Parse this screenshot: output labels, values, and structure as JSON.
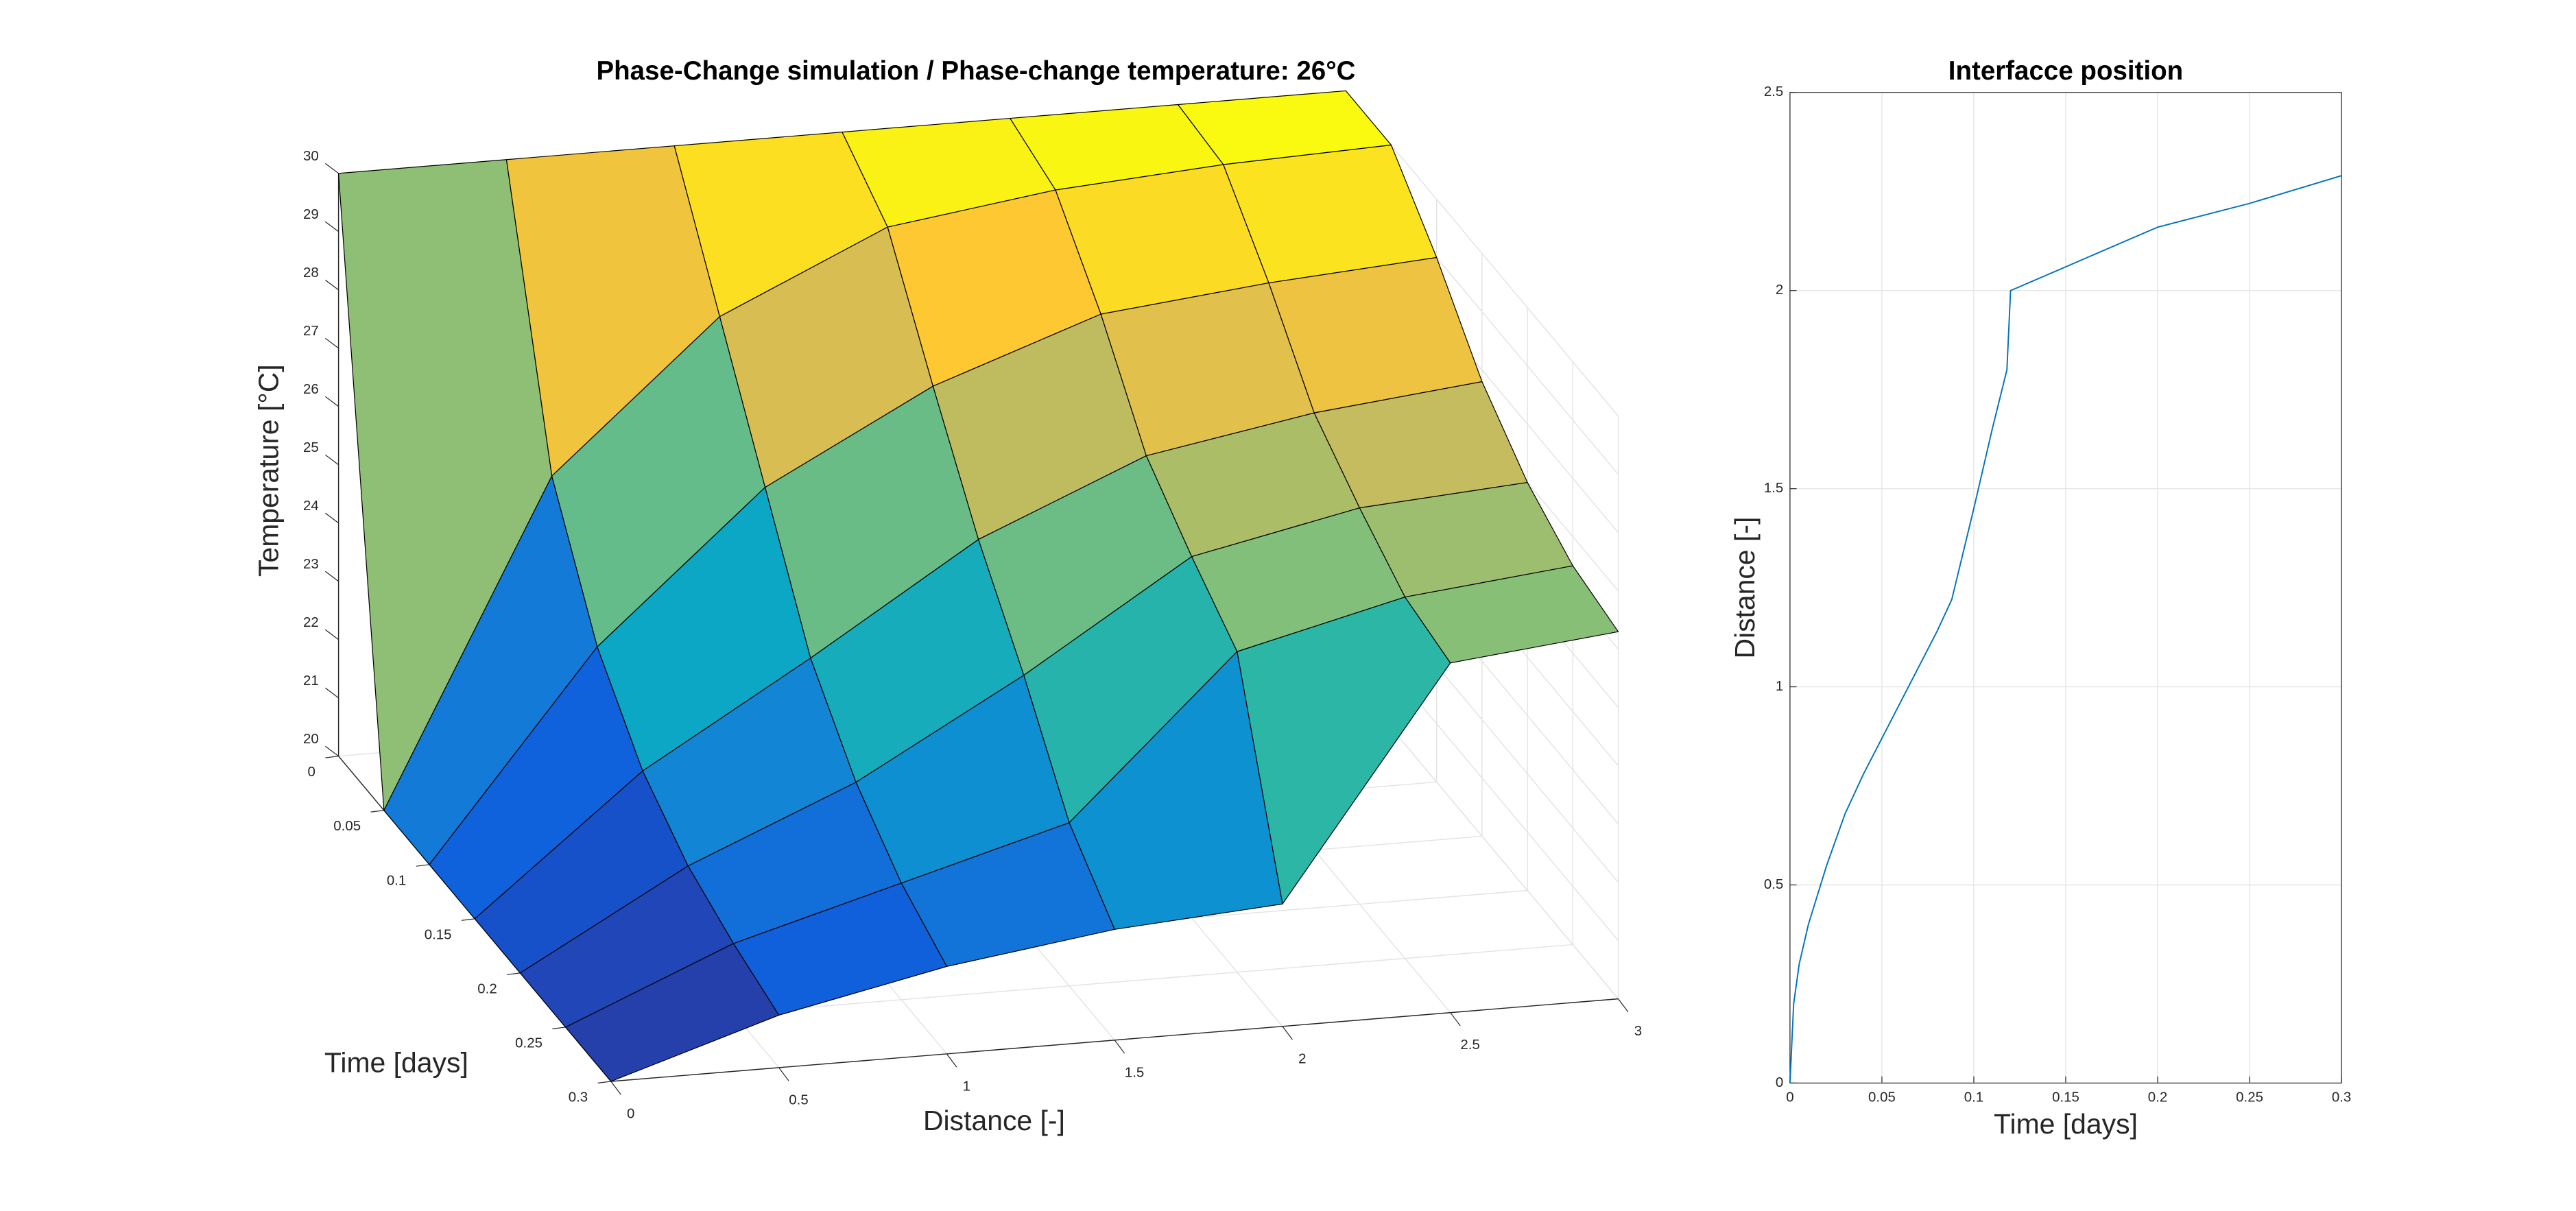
{
  "chart_data": [
    {
      "type": "surface",
      "title": "Phase-Change simulation / Phase-change temperature: 26°C",
      "xlabel": "Distance  [-]",
      "ylabel": "Time  [days]",
      "zlabel": "Temperature  [°C]",
      "x": [
        0,
        0.5,
        1,
        1.5,
        2,
        2.5,
        3
      ],
      "y": [
        0,
        0.05,
        0.1,
        0.15,
        0.2,
        0.25,
        0.3
      ],
      "z": [
        [
          30,
          30,
          30,
          30,
          30,
          30,
          30
        ],
        [
          20,
          25.5,
          28,
          29.3,
          29.7,
          29.9,
          30
        ],
        [
          20,
          23.5,
          26,
          27.5,
          28.5,
          28.8,
          29
        ],
        [
          20,
          22.3,
          24,
          25.8,
          27,
          27.5,
          27.8
        ],
        [
          20,
          21.6,
          22.8,
          24.4,
          26.2,
          26.8,
          27
        ],
        [
          20,
          21.2,
          22,
          22.8,
          25.5,
          26.2,
          26.5
        ],
        [
          20,
          20.9,
          21.5,
          21.9,
          22.1,
          26,
          26.3
        ]
      ],
      "xlim": [
        0,
        3
      ],
      "ylim": [
        0,
        0.3
      ],
      "zlim": [
        20,
        30
      ],
      "xticks": [
        0,
        0.5,
        1,
        1.5,
        2,
        2.5,
        3
      ],
      "yticks": [
        0,
        0.05,
        0.1,
        0.15,
        0.2,
        0.25,
        0.3
      ],
      "zticks": [
        20,
        21,
        22,
        23,
        24,
        25,
        26,
        27,
        28,
        29,
        30
      ],
      "colormap": [
        "#352a87",
        "#0f5cdd",
        "#1481d6",
        "#06a4ca",
        "#2eb7a4",
        "#87bf77",
        "#d1bb59",
        "#fec832",
        "#f9fb0e"
      ],
      "grid": true
    },
    {
      "type": "line",
      "title": "Interfacce position",
      "xlabel": "Time  [days]",
      "ylabel": "Distance  [-]",
      "x": [
        0,
        0.002,
        0.005,
        0.01,
        0.02,
        0.03,
        0.04,
        0.05,
        0.06,
        0.07,
        0.08,
        0.088,
        0.1,
        0.11,
        0.118,
        0.12,
        0.125,
        0.15,
        0.2,
        0.25,
        0.3
      ],
      "values": [
        0,
        0.2,
        0.3,
        0.4,
        0.55,
        0.68,
        0.78,
        0.87,
        0.96,
        1.05,
        1.14,
        1.22,
        1.45,
        1.65,
        1.8,
        2.0,
        2.01,
        2.06,
        2.16,
        2.22,
        2.29
      ],
      "color": "#0072bd",
      "xlim": [
        0,
        0.3
      ],
      "ylim": [
        0,
        2.5
      ],
      "xticks": [
        0,
        0.05,
        0.1,
        0.15,
        0.2,
        0.25,
        0.3
      ],
      "yticks": [
        0,
        0.5,
        1,
        1.5,
        2,
        2.5
      ],
      "grid": true
    }
  ]
}
